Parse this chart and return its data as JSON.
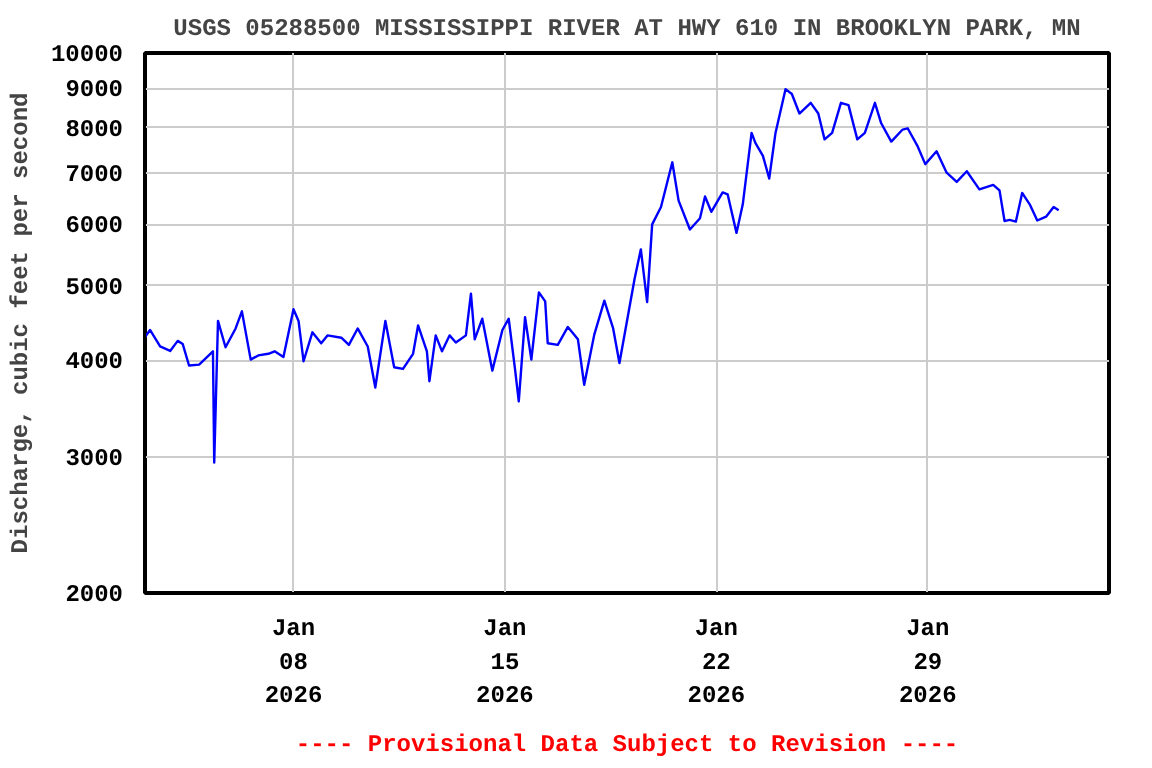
{
  "chart_data": {
    "type": "line",
    "title": "USGS 05288500 MISSISSIPPI RIVER AT HWY 610 IN BROOKLYN PARK, MN",
    "ylabel": "Discharge, cubic feet per second",
    "annotations": [
      "---- Provisional Data Subject to Revision ----"
    ],
    "log": "y",
    "grid": true,
    "marker": "none",
    "line_style": "solid",
    "xlim": [
      "2026-01-03T02:00",
      "2026-02-04T00:00"
    ],
    "xticks": [
      {
        "value": "2026-01-08",
        "label": "Jan\n08\n2026"
      },
      {
        "value": "2026-01-15",
        "label": "Jan\n15\n2026"
      },
      {
        "value": "2026-01-22",
        "label": "Jan\n22\n2026"
      },
      {
        "value": "2026-01-29",
        "label": "Jan\n29\n2026"
      }
    ],
    "ylim": [
      2000,
      10000
    ],
    "yticks": [
      2000,
      3000,
      4000,
      5000,
      6000,
      7000,
      8000,
      9000,
      10000
    ],
    "series": [
      {
        "color": "#0000ff",
        "x": [
          "2026-01-03T02:00",
          "2026-01-03T06:00",
          "2026-01-03T14:00",
          "2026-01-03T22:00",
          "2026-01-04T04:00",
          "2026-01-04T08:00",
          "2026-01-04T13:00",
          "2026-01-04T21:00",
          "2026-01-05T08:00",
          "2026-01-05T09:00",
          "2026-01-05T12:00",
          "2026-01-05T18:00",
          "2026-01-06T02:00",
          "2026-01-06T07:00",
          "2026-01-06T14:00",
          "2026-01-06T20:00",
          "2026-01-07T04:00",
          "2026-01-07T09:00",
          "2026-01-07T16:00",
          "2026-01-08T00:00",
          "2026-01-08T04:00",
          "2026-01-08T08:00",
          "2026-01-08T15:00",
          "2026-01-08T22:00",
          "2026-01-09T03:00",
          "2026-01-09T14:00",
          "2026-01-09T20:00",
          "2026-01-10T03:00",
          "2026-01-10T11:00",
          "2026-01-10T17:00",
          "2026-01-11T01:00",
          "2026-01-11T08:00",
          "2026-01-11T15:00",
          "2026-01-11T23:00",
          "2026-01-12T03:00",
          "2026-01-12T10:00",
          "2026-01-12T12:00",
          "2026-01-12T17:00",
          "2026-01-12T22:00",
          "2026-01-13T04:00",
          "2026-01-13T09:00",
          "2026-01-13T17:00",
          "2026-01-13T21:00",
          "2026-01-14T00:00",
          "2026-01-14T06:00",
          "2026-01-14T14:00",
          "2026-01-14T22:00",
          "2026-01-15T03:00",
          "2026-01-15T08:00",
          "2026-01-15T11:00",
          "2026-01-15T16:00",
          "2026-01-15T21:00",
          "2026-01-16T03:00",
          "2026-01-16T08:00",
          "2026-01-16T10:00",
          "2026-01-16T18:00",
          "2026-01-17T02:00",
          "2026-01-17T10:00",
          "2026-01-17T15:00",
          "2026-01-17T23:00",
          "2026-01-18T07:00",
          "2026-01-18T14:00",
          "2026-01-18T19:00",
          "2026-01-19T01:00",
          "2026-01-19T07:00",
          "2026-01-19T12:00",
          "2026-01-19T17:00",
          "2026-01-19T21:00",
          "2026-01-20T04:00",
          "2026-01-20T13:00",
          "2026-01-20T18:00",
          "2026-01-21T03:00",
          "2026-01-21T11:00",
          "2026-01-21T15:00",
          "2026-01-21T20:00",
          "2026-01-22T05:00",
          "2026-01-22T09:00",
          "2026-01-22T16:00",
          "2026-01-22T21:00",
          "2026-01-23T04:00",
          "2026-01-23T07:00",
          "2026-01-23T13:00",
          "2026-01-23T18:00",
          "2026-01-23T23:00",
          "2026-01-24T07:00",
          "2026-01-24T12:00",
          "2026-01-24T18:00",
          "2026-01-25T03:00",
          "2026-01-25T09:00",
          "2026-01-25T14:00",
          "2026-01-25T20:00",
          "2026-01-26T03:00",
          "2026-01-26T09:00",
          "2026-01-26T16:00",
          "2026-01-26T22:00",
          "2026-01-27T06:00",
          "2026-01-27T11:00",
          "2026-01-27T19:00",
          "2026-01-28T04:00",
          "2026-01-28T08:00",
          "2026-01-28T16:00",
          "2026-01-28T22:00",
          "2026-01-29T07:00",
          "2026-01-29T15:00",
          "2026-01-29T23:00",
          "2026-01-30T07:00",
          "2026-01-30T17:00",
          "2026-01-31T04:00",
          "2026-01-31T09:00",
          "2026-01-31T13:00",
          "2026-01-31T17:00",
          "2026-01-31T22:00",
          "2026-02-01T03:00",
          "2026-02-01T09:00",
          "2026-02-01T15:00",
          "2026-02-01T22:00",
          "2026-02-02T04:00",
          "2026-02-02T08:00"
        ],
        "values": [
          4290,
          4380,
          4170,
          4115,
          4240,
          4200,
          3940,
          3950,
          4110,
          2950,
          4500,
          4160,
          4400,
          4630,
          4010,
          4060,
          4080,
          4110,
          4040,
          4660,
          4500,
          3990,
          4350,
          4210,
          4310,
          4280,
          4190,
          4400,
          4170,
          3690,
          4500,
          3920,
          3900,
          4080,
          4440,
          4110,
          3760,
          4310,
          4110,
          4310,
          4220,
          4310,
          4880,
          4260,
          4530,
          3880,
          4380,
          4530,
          3900,
          3540,
          4550,
          4010,
          4900,
          4770,
          4210,
          4190,
          4420,
          4260,
          3720,
          4320,
          4780,
          4400,
          3970,
          4500,
          5100,
          5570,
          4760,
          6000,
          6320,
          7220,
          6440,
          5910,
          6110,
          6520,
          6230,
          6600,
          6560,
          5850,
          6370,
          7880,
          7650,
          7360,
          6880,
          7880,
          8980,
          8850,
          8350,
          8620,
          8350,
          7730,
          7880,
          8620,
          8560,
          7730,
          7880,
          8620,
          8110,
          7680,
          7960,
          7990,
          7570,
          7180,
          7460,
          7000,
          6810,
          7030,
          6660,
          6750,
          6640,
          6060,
          6080,
          6050,
          6590,
          6370,
          6070,
          6140,
          6320,
          6260
        ]
      }
    ]
  }
}
